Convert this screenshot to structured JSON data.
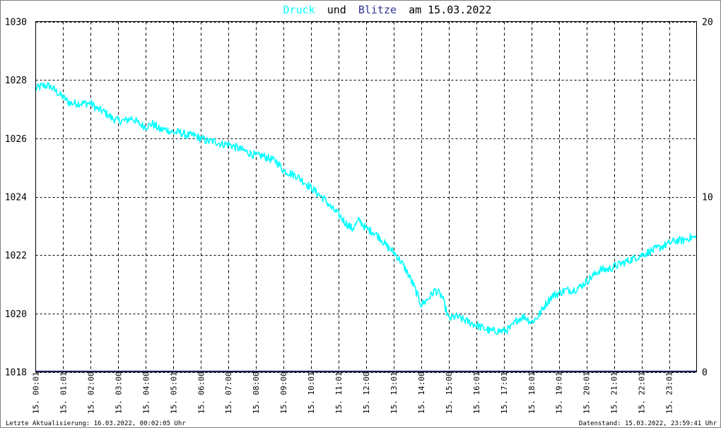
{
  "chart_data": {
    "type": "line",
    "title": {
      "part1": "Druck",
      "part2": "und",
      "part3": "Blitze",
      "part4": "am 15.03.2022"
    },
    "colors": {
      "druck": "#00ffff",
      "blitze": "#333399",
      "title_text": "#000000"
    },
    "grid": true,
    "y_left": {
      "min": 1018,
      "max": 1030,
      "ticks": [
        "1018",
        "1020",
        "1022",
        "1024",
        "1026",
        "1028",
        "1030"
      ]
    },
    "y_right": {
      "min": 0,
      "max": 20,
      "ticks": [
        "0",
        "10",
        "20"
      ]
    },
    "x_axis": {
      "min_hour": 0,
      "max_hour": 24,
      "ticks": [
        {
          "h": 0,
          "label": "15. 00:01"
        },
        {
          "h": 1,
          "label": "15. 01:01"
        },
        {
          "h": 2,
          "label": "15. 02:00"
        },
        {
          "h": 3,
          "label": "15. 03:00"
        },
        {
          "h": 4,
          "label": "15. 04:00"
        },
        {
          "h": 5,
          "label": "15. 05:01"
        },
        {
          "h": 6,
          "label": "15. 06:00"
        },
        {
          "h": 7,
          "label": "15. 07:00"
        },
        {
          "h": 8,
          "label": "15. 08:00"
        },
        {
          "h": 9,
          "label": "15. 09:00"
        },
        {
          "h": 10,
          "label": "15. 10:01"
        },
        {
          "h": 11,
          "label": "15. 11:01"
        },
        {
          "h": 12,
          "label": "15. 12:00"
        },
        {
          "h": 13,
          "label": "15. 13:01"
        },
        {
          "h": 14,
          "label": "15. 14:00"
        },
        {
          "h": 15,
          "label": "15. 15:00"
        },
        {
          "h": 16,
          "label": "15. 16:01"
        },
        {
          "h": 17,
          "label": "15. 17:01"
        },
        {
          "h": 18,
          "label": "15. 18:01"
        },
        {
          "h": 19,
          "label": "15. 19:01"
        },
        {
          "h": 20,
          "label": "15. 20:01"
        },
        {
          "h": 21,
          "label": "15. 21:01"
        },
        {
          "h": 22,
          "label": "15. 22:01"
        },
        {
          "h": 23,
          "label": "15. 23:01"
        }
      ]
    },
    "series": [
      {
        "name": "Druck",
        "axis": "left",
        "x_hours": [
          0,
          0.25,
          0.5,
          0.75,
          1.0,
          1.25,
          1.5,
          1.75,
          2.0,
          2.25,
          2.5,
          2.75,
          3.0,
          3.25,
          3.5,
          3.75,
          4.0,
          4.25,
          4.5,
          4.75,
          5.0,
          5.25,
          5.5,
          5.75,
          6.0,
          6.25,
          6.5,
          6.75,
          7.0,
          7.25,
          7.5,
          7.75,
          8.0,
          8.25,
          8.5,
          8.75,
          9.0,
          9.25,
          9.5,
          9.75,
          10.0,
          10.25,
          10.5,
          10.75,
          11.0,
          11.25,
          11.5,
          11.75,
          12.0,
          12.25,
          12.5,
          12.75,
          13.0,
          13.25,
          13.5,
          13.75,
          14.0,
          14.25,
          14.5,
          14.75,
          15.0,
          15.25,
          15.5,
          15.75,
          16.0,
          16.25,
          16.5,
          16.75,
          17.0,
          17.25,
          17.5,
          17.75,
          18.0,
          18.25,
          18.5,
          18.75,
          19.0,
          19.25,
          19.5,
          19.75,
          20.0,
          20.25,
          20.5,
          20.75,
          21.0,
          21.25,
          21.5,
          21.75,
          22.0,
          22.25,
          22.5,
          22.75,
          23.0,
          23.25,
          23.5,
          23.75,
          24.0
        ],
        "values": [
          1027.7,
          1027.8,
          1027.8,
          1027.6,
          1027.4,
          1027.2,
          1027.2,
          1027.2,
          1027.2,
          1027.0,
          1026.9,
          1026.7,
          1026.6,
          1026.6,
          1026.7,
          1026.5,
          1026.4,
          1026.5,
          1026.3,
          1026.3,
          1026.2,
          1026.2,
          1026.1,
          1026.1,
          1026.0,
          1025.9,
          1025.9,
          1025.8,
          1025.8,
          1025.7,
          1025.6,
          1025.5,
          1025.4,
          1025.4,
          1025.3,
          1025.2,
          1024.9,
          1024.8,
          1024.7,
          1024.5,
          1024.3,
          1024.1,
          1023.9,
          1023.6,
          1023.4,
          1023.1,
          1022.9,
          1023.2,
          1022.9,
          1022.8,
          1022.6,
          1022.3,
          1022.1,
          1021.8,
          1021.4,
          1020.9,
          1020.3,
          1020.5,
          1020.8,
          1020.6,
          1019.8,
          1019.9,
          1019.8,
          1019.7,
          1019.6,
          1019.5,
          1019.4,
          1019.4,
          1019.4,
          1019.5,
          1019.8,
          1019.9,
          1019.7,
          1019.9,
          1020.3,
          1020.6,
          1020.7,
          1020.8,
          1020.8,
          1020.9,
          1021.1,
          1021.3,
          1021.5,
          1021.5,
          1021.6,
          1021.7,
          1021.8,
          1021.9,
          1022.0,
          1022.1,
          1022.2,
          1022.3,
          1022.4,
          1022.5,
          1022.5,
          1022.6,
          1022.6
        ]
      },
      {
        "name": "Blitze",
        "axis": "right",
        "x_hours": [
          0,
          24
        ],
        "values": [
          0,
          0
        ]
      }
    ]
  },
  "footer": {
    "left": "Letzte Aktualisierung: 16.03.2022, 00:02:05 Uhr",
    "right": "Datenstand: 15.03.2022, 23:59:41 Uhr"
  }
}
